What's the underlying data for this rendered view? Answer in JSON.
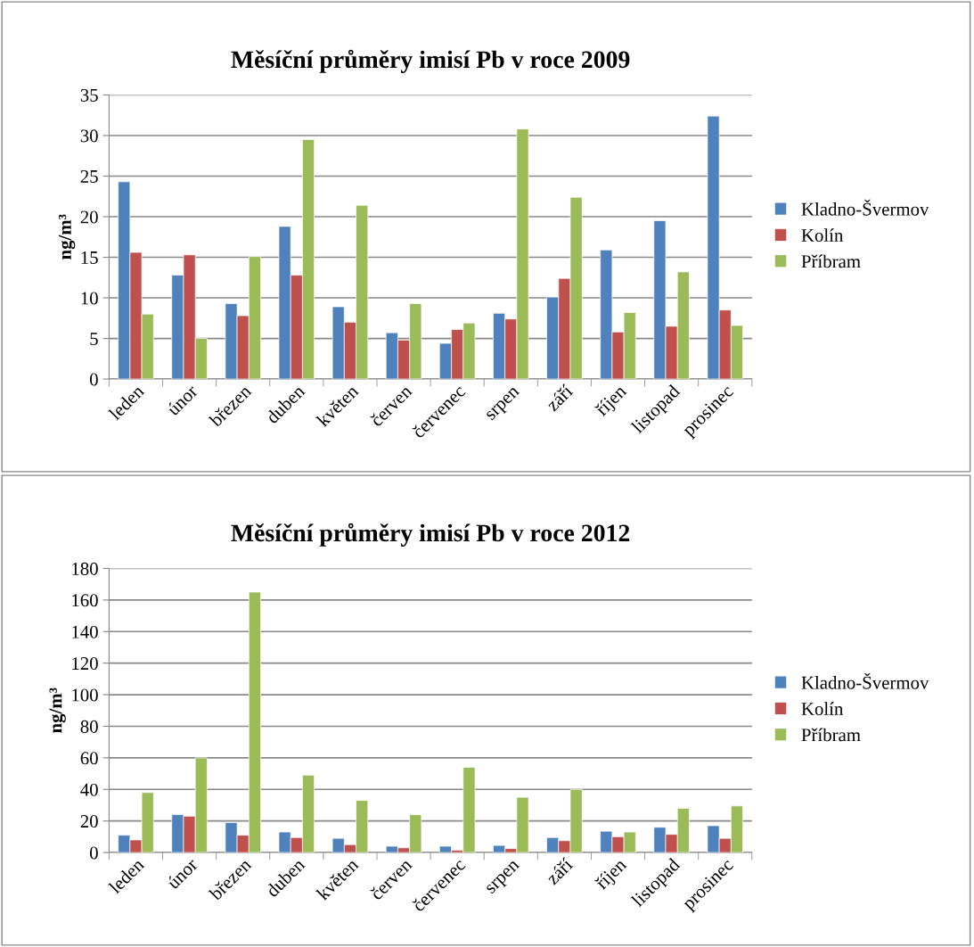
{
  "chart_data": [
    {
      "type": "bar",
      "title": "Měsíční průměry imisí Pb v roce 2009",
      "ylabel": "ng/m³",
      "categories": [
        "leden",
        "únor",
        "březen",
        "duben",
        "květen",
        "červen",
        "červenec",
        "srpen",
        "září",
        "říjen",
        "listopad",
        "prosinec"
      ],
      "series": [
        {
          "name": "Kladno-Švermov",
          "color": "#4f81bd",
          "values": [
            24.3,
            12.8,
            9.3,
            18.8,
            8.9,
            5.7,
            4.4,
            8.1,
            10.1,
            15.9,
            19.5,
            32.4
          ]
        },
        {
          "name": "Kolín",
          "color": "#c0504d",
          "values": [
            15.6,
            15.3,
            7.8,
            12.8,
            7.0,
            4.8,
            6.1,
            7.4,
            12.4,
            5.8,
            6.5,
            8.5
          ]
        },
        {
          "name": "Příbram",
          "color": "#9bbb59",
          "values": [
            8.0,
            5.0,
            15.1,
            29.5,
            21.4,
            9.3,
            6.9,
            30.8,
            22.4,
            8.2,
            13.2,
            6.6
          ]
        }
      ],
      "ylim": [
        0,
        35
      ],
      "yticks": [
        0,
        5,
        10,
        15,
        20,
        25,
        30,
        35
      ],
      "grid": "y",
      "legend": "right"
    },
    {
      "type": "bar",
      "title": "Měsíční průměry imisí Pb v roce 2012",
      "ylabel": "ng/m³",
      "categories": [
        "leden",
        "únor",
        "březen",
        "duben",
        "květen",
        "červen",
        "červenec",
        "srpen",
        "září",
        "říjen",
        "listopad",
        "prosinec"
      ],
      "series": [
        {
          "name": "Kladno-Švermov",
          "color": "#4f81bd",
          "values": [
            11,
            24,
            19,
            13,
            9,
            4,
            4,
            4.5,
            9.5,
            13.5,
            16,
            17
          ]
        },
        {
          "name": "Kolín",
          "color": "#c0504d",
          "values": [
            8,
            23,
            11,
            9.5,
            5,
            3,
            1.5,
            2.5,
            7.5,
            10,
            11.5,
            9
          ]
        },
        {
          "name": "Příbram",
          "color": "#9bbb59",
          "values": [
            38,
            60,
            165,
            49,
            33,
            24,
            54,
            35,
            40,
            13,
            28,
            29.5
          ]
        }
      ],
      "ylim": [
        0,
        180
      ],
      "yticks": [
        0,
        20,
        40,
        60,
        80,
        100,
        120,
        140,
        160,
        180
      ],
      "grid": "y",
      "legend": "right"
    }
  ]
}
